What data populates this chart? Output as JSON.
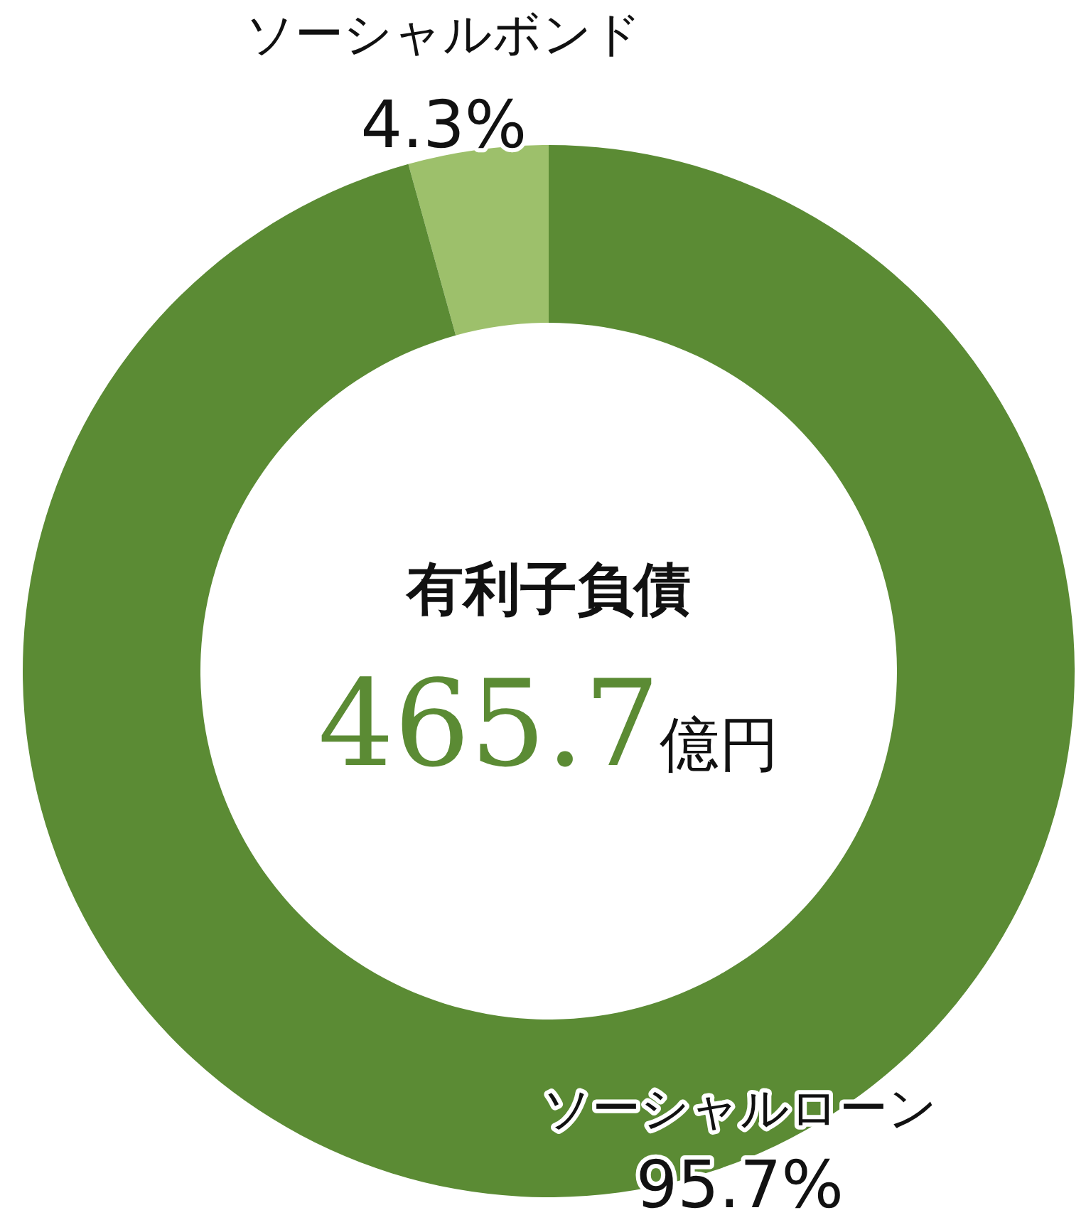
{
  "chart_data": {
    "type": "donut",
    "title": "有利子負債",
    "annotations": [
      "465.7億円"
    ],
    "categories": [
      "ソーシャルボンド",
      "ソーシャルローン"
    ],
    "values": [
      4.3,
      95.7
    ],
    "colors": [
      "#9dc06b",
      "#5b8b34"
    ],
    "value_labels": [
      "4.3%",
      "95.7%"
    ]
  }
}
